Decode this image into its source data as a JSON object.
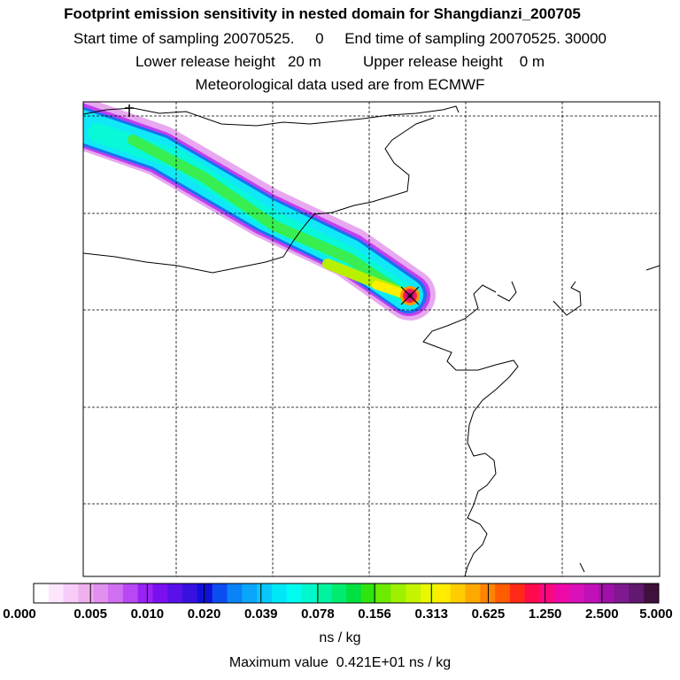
{
  "title": {
    "line1": "Footprint emission sensitivity in nested domain for Shangdianzi_200705",
    "line2_start_label": "Start time of sampling 20070525.",
    "line2_start_value": "0",
    "line2_end_label": "End time of sampling 20070525. 30000",
    "line3_lower_label": "Lower release height",
    "line3_lower_value": "20 m",
    "line3_upper_label": "Upper release height",
    "line3_upper_value": "0 m",
    "line4": "Meteorological data used are from ECMWF"
  },
  "legend": {
    "ticks": [
      "0.000",
      "0.005",
      "0.010",
      "0.020",
      "0.039",
      "0.078",
      "0.156",
      "0.313",
      "0.625",
      "1.250",
      "2.500",
      "5.000"
    ],
    "units": "ns / kg",
    "max_label": "Maximum value",
    "max_value": "0.421E+01 ns / kg",
    "colors": [
      "#ffffff",
      "#fde6fd",
      "#f7ccf7",
      "#f0b0f0",
      "#e290ef",
      "#d070f0",
      "#b848f4",
      "#9a22f4",
      "#7a10f0",
      "#5a10e8",
      "#3810e0",
      "#1010d8",
      "#0a4ef0",
      "#0a82f8",
      "#0aa6fb",
      "#08c8fb",
      "#00e8f8",
      "#00fcf0",
      "#00f8cc",
      "#00f4a0",
      "#00ec70",
      "#00e040",
      "#30e410",
      "#6cea00",
      "#9cf000",
      "#c4f400",
      "#e8f800",
      "#ffec00",
      "#ffcc00",
      "#ffa800",
      "#ff8400",
      "#ff5c00",
      "#ff2a18",
      "#ff0a4c",
      "#fa0880",
      "#ee08a8",
      "#d810b8",
      "#c010b8",
      "#a010a8",
      "#801890",
      "#601870",
      "#40103c"
    ]
  },
  "map": {
    "receptor_name": "Shangdianzi",
    "plume_colors": {
      "outer": "#e8a8f0",
      "edge": "#c040f0",
      "blue": "#1a70f0",
      "cyan": "#10e8f8",
      "aqua": "#08f8d8",
      "green": "#38ee50",
      "yellowgreen": "#b8f000",
      "yellow": "#fff000",
      "orange": "#ff9a00",
      "red": "#ff2040",
      "magenta": "#d0108a",
      "dark": "#701858"
    }
  }
}
